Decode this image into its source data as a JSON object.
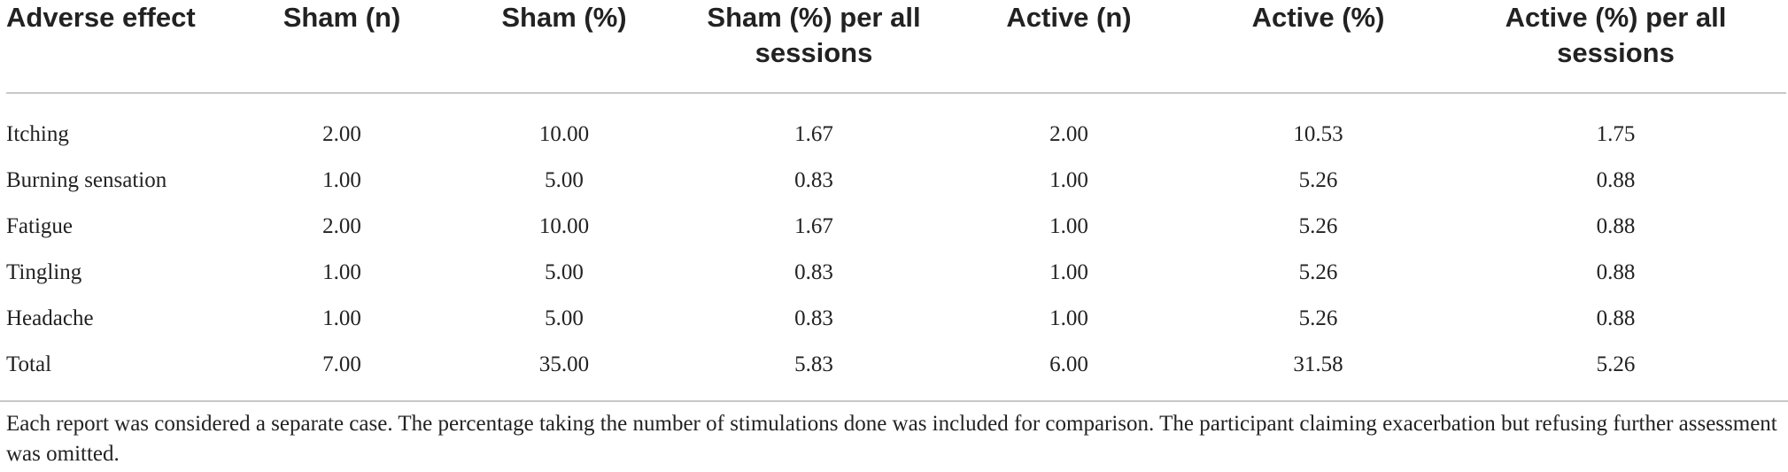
{
  "table": {
    "headers": [
      "Adverse effect",
      "Sham (n)",
      "Sham (%)",
      "Sham (%) per all sessions",
      "Active (n)",
      "Active (%)",
      "Active (%) per all sessions"
    ],
    "rows": [
      [
        "Itching",
        "2.00",
        "10.00",
        "1.67",
        "2.00",
        "10.53",
        "1.75"
      ],
      [
        "Burning sensation",
        "1.00",
        "5.00",
        "0.83",
        "1.00",
        "5.26",
        "0.88"
      ],
      [
        "Fatigue",
        "2.00",
        "10.00",
        "1.67",
        "1.00",
        "5.26",
        "0.88"
      ],
      [
        "Tingling",
        "1.00",
        "5.00",
        "0.83",
        "1.00",
        "5.26",
        "0.88"
      ],
      [
        "Headache",
        "1.00",
        "5.00",
        "0.83",
        "1.00",
        "5.26",
        "0.88"
      ],
      [
        "Total",
        "7.00",
        "35.00",
        "5.83",
        "6.00",
        "31.58",
        "5.26"
      ]
    ]
  },
  "footnote": "Each report was considered a separate case. The percentage taking the number of stimulations done was included for comparison. The participant claiming exacerbation but refusing further assessment was omitted."
}
